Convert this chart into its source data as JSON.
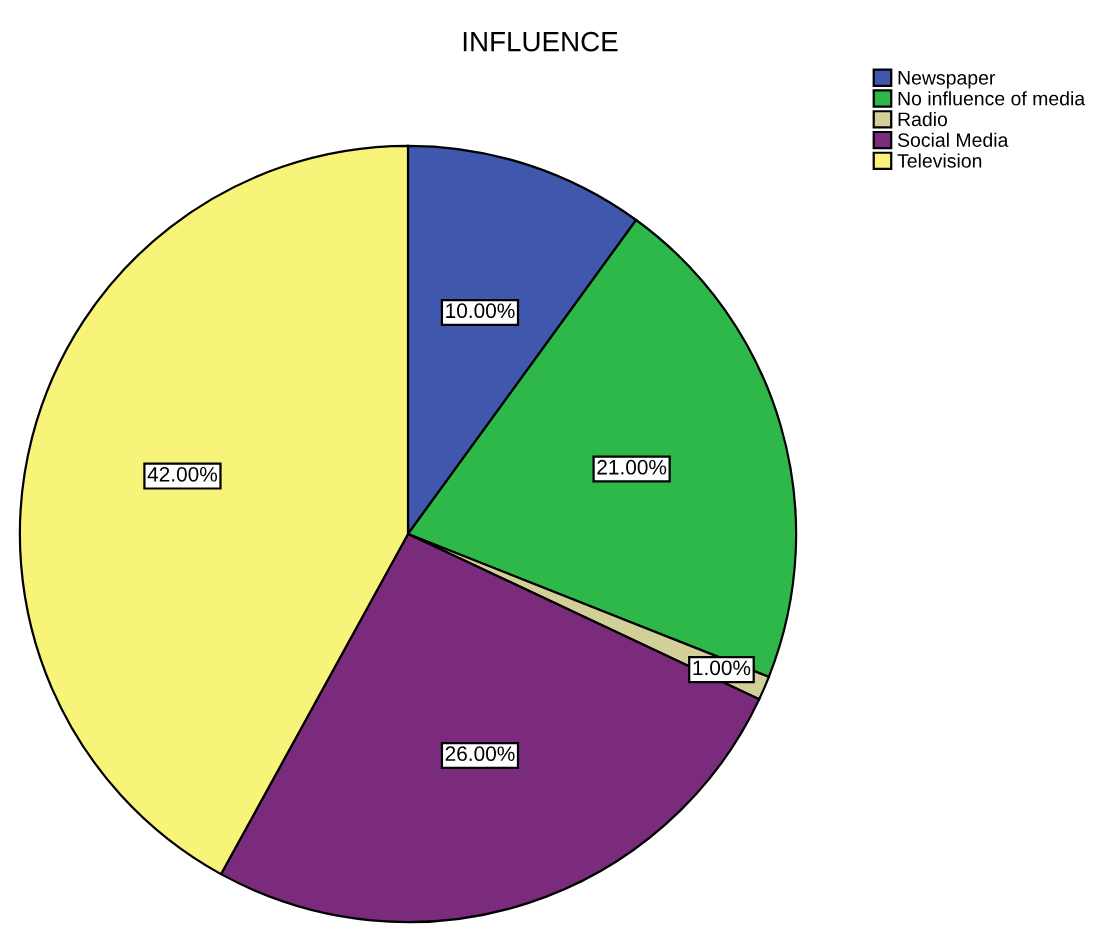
{
  "chart_data": {
    "type": "pie",
    "title": "INFLUENCE",
    "categories": [
      "Newspaper",
      "No influence of media",
      "Radio",
      "Social Media",
      "Television"
    ],
    "values": [
      10,
      21,
      1,
      26,
      42
    ],
    "colors": [
      "#3f57ad",
      "#2fb84a",
      "#d3cf98",
      "#7b2b7c",
      "#f8f47a"
    ],
    "value_labels": [
      "10.00%",
      "21.00%",
      "1.00%",
      "26.00%",
      "42.00%"
    ],
    "legend": "top right"
  }
}
